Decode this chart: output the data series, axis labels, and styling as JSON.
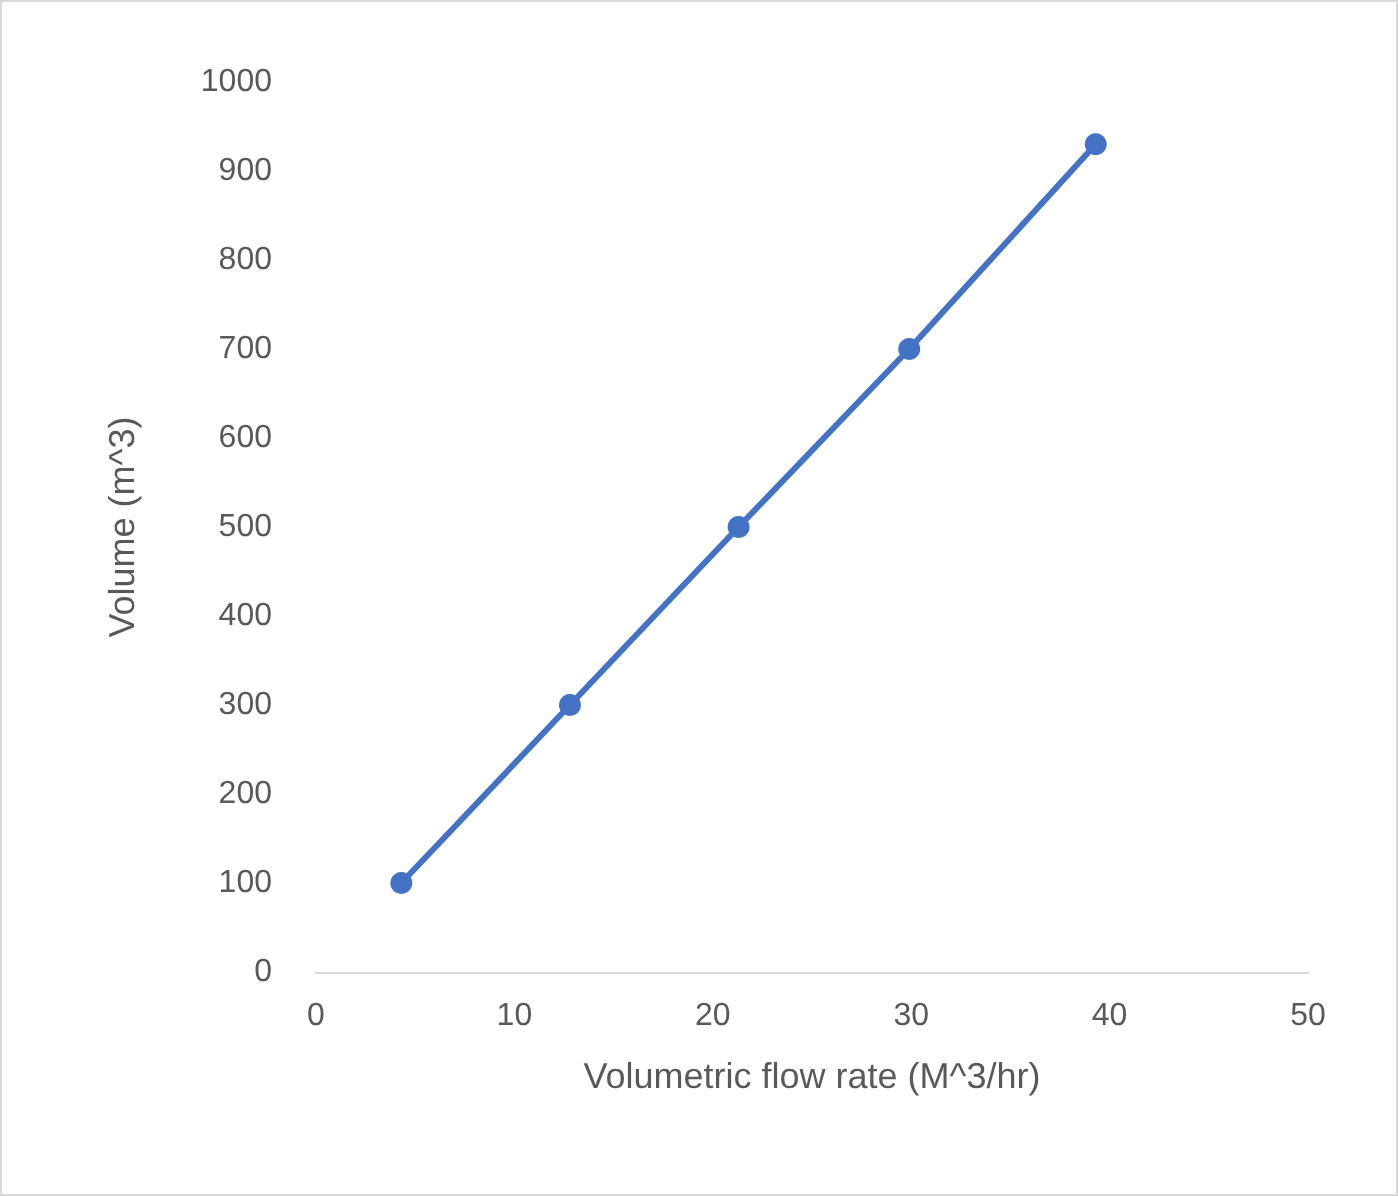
{
  "chart_data": {
    "type": "line",
    "xlabel": "Volumetric flow rate (M^3/hr)",
    "ylabel": "Volume (m^3)",
    "x": [
      4.3,
      12.8,
      21.3,
      29.9,
      39.3
    ],
    "series": [
      {
        "color": "#4472c4",
        "values": [
          100,
          300,
          500,
          700,
          930
        ]
      }
    ],
    "xlim": [
      0,
      50
    ],
    "xticks": [
      0,
      10,
      20,
      30,
      40,
      50
    ],
    "ylim": [
      0,
      1000
    ],
    "yticks": [
      0,
      100,
      200,
      300,
      400,
      500,
      600,
      700,
      800,
      900,
      1000
    ],
    "grid": false,
    "marker": "circle",
    "line_style": "solid"
  }
}
